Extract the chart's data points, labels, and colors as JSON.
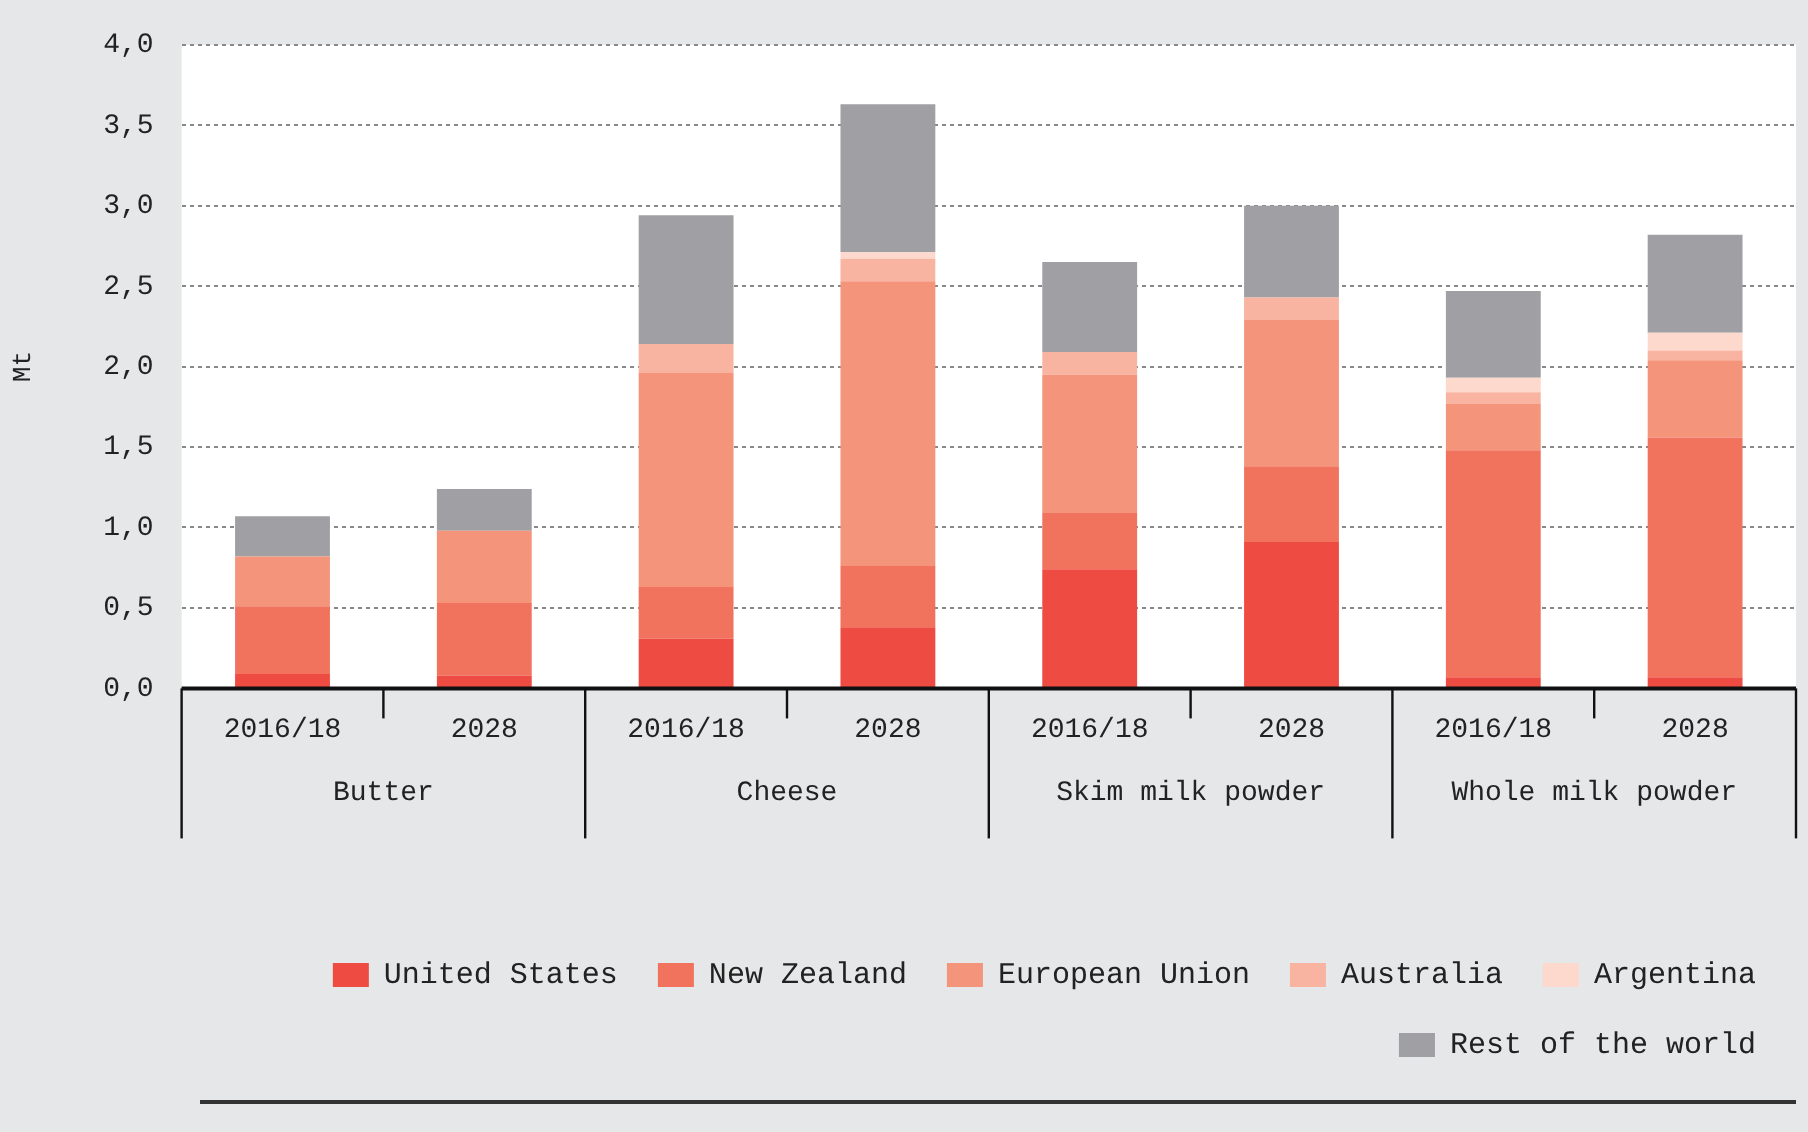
{
  "chart_data": {
    "type": "bar",
    "stacked": true,
    "ylabel": "Mt",
    "categories": [
      "2016/18",
      "2028",
      "2016/18",
      "2028",
      "2016/18",
      "2028",
      "2016/18",
      "2028"
    ],
    "annotations": [
      "Butter",
      "Cheese",
      "Skim milk powder",
      "Whole milk powder"
    ],
    "series": [
      {
        "name": "United States",
        "color": "#ee4b43",
        "values": [
          0.09,
          0.08,
          0.31,
          0.38,
          0.74,
          0.91,
          0.07,
          0.07
        ]
      },
      {
        "name": "New Zealand",
        "color": "#f1735e",
        "values": [
          0.42,
          0.45,
          0.32,
          0.38,
          0.35,
          0.47,
          1.41,
          1.49
        ]
      },
      {
        "name": "European Union",
        "color": "#f4947a",
        "values": [
          0.31,
          0.45,
          1.33,
          1.77,
          0.86,
          0.91,
          0.29,
          0.48
        ]
      },
      {
        "name": "Australia",
        "color": "#f8b4a0",
        "values": [
          0,
          0,
          0.18,
          0.14,
          0.14,
          0.14,
          0.07,
          0.06
        ]
      },
      {
        "name": "Argentina",
        "color": "#fcd9cc",
        "values": [
          0,
          0,
          0,
          0.04,
          0,
          0,
          0.09,
          0.11
        ]
      },
      {
        "name": "Rest of the world",
        "color": "#a0a0a4",
        "values": [
          0.25,
          0.26,
          0.8,
          0.92,
          0.56,
          0.57,
          0.54,
          0.61
        ]
      }
    ],
    "ylim": [
      0,
      4
    ],
    "yticks": [
      {
        "value": 0,
        "label": "0,0"
      },
      {
        "value": 0.5,
        "label": "0,5"
      },
      {
        "value": 1,
        "label": "1,0"
      },
      {
        "value": 1.5,
        "label": "1,5"
      },
      {
        "value": 2,
        "label": "2,0"
      },
      {
        "value": 2.5,
        "label": "2,5"
      },
      {
        "value": 3,
        "label": "3,0"
      },
      {
        "value": 3.5,
        "label": "3,5"
      },
      {
        "value": 4,
        "label": "4,0"
      }
    ],
    "grid": "y",
    "legend": "bottom right"
  }
}
